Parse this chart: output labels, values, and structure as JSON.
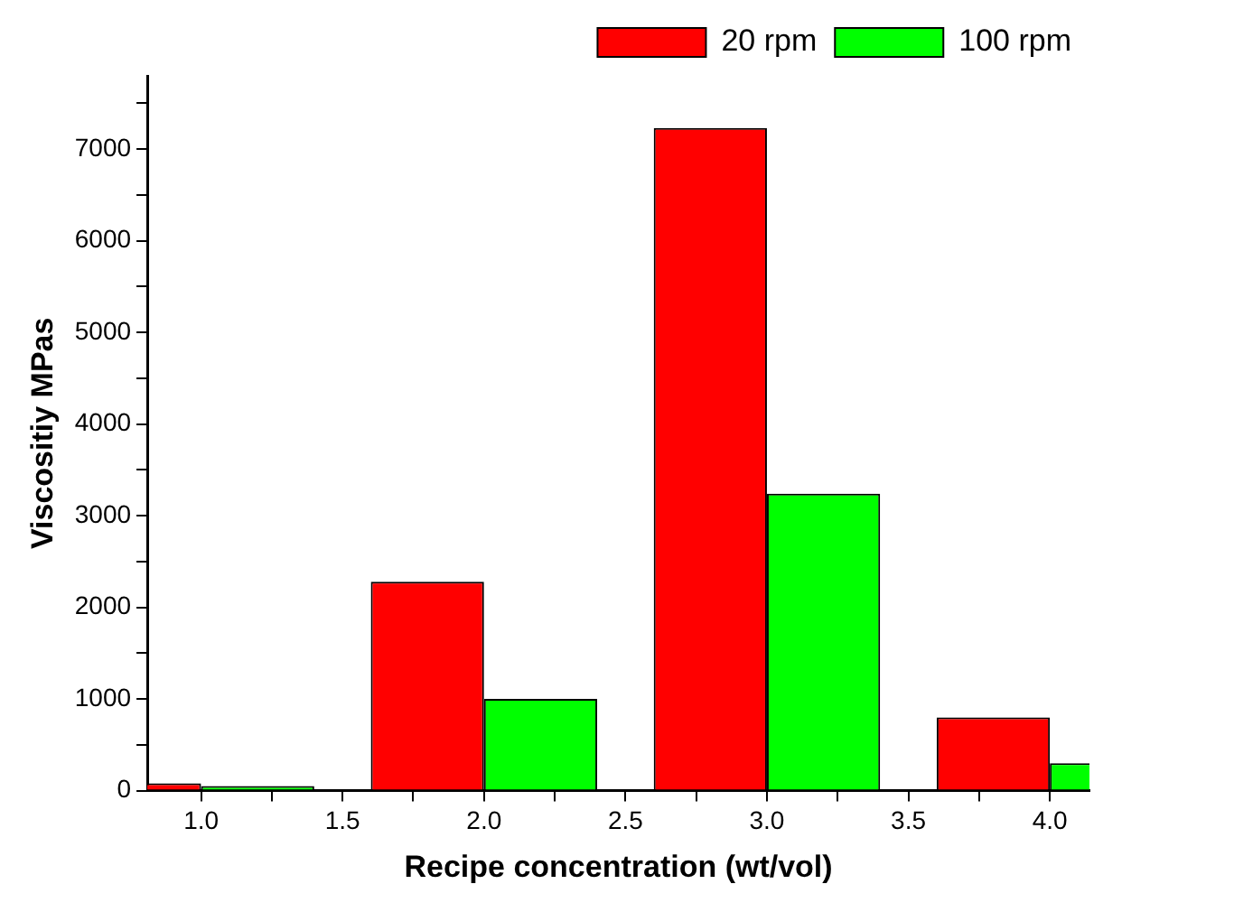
{
  "chart_data": {
    "type": "bar",
    "xlabel": "Recipe concentration (wt/vol)",
    "ylabel": "Viscositiy MPas",
    "x": [
      1,
      2,
      3,
      4
    ],
    "series": [
      {
        "name": "20 rpm",
        "color": "#ff0000",
        "values": [
          80,
          2280,
          7230,
          800
        ]
      },
      {
        "name": "100 rpm",
        "color": "#00ff00",
        "values": [
          50,
          1000,
          3240,
          300
        ]
      }
    ],
    "xlim": [
      0.81,
      4.14
    ],
    "xticks": [
      {
        "value": 1,
        "label": "1.0"
      },
      {
        "value": 1.25,
        "label": null
      },
      {
        "value": 1.5,
        "label": "1.5"
      },
      {
        "value": 1.75,
        "label": null
      },
      {
        "value": 2,
        "label": "2.0"
      },
      {
        "value": 2.25,
        "label": null
      },
      {
        "value": 2.5,
        "label": "2.5"
      },
      {
        "value": 2.75,
        "label": null
      },
      {
        "value": 3,
        "label": "3.0"
      },
      {
        "value": 3.25,
        "label": null
      },
      {
        "value": 3.5,
        "label": "3.5"
      },
      {
        "value": 3.75,
        "label": null
      },
      {
        "value": 4,
        "label": "4.0"
      }
    ],
    "ylim": [
      0,
      7800
    ],
    "yticks": [
      0,
      {
        "value": 500,
        "label": null
      },
      1000,
      {
        "value": 1500,
        "label": null
      },
      2000,
      {
        "value": 2500,
        "label": null
      },
      3000,
      {
        "value": 3500,
        "label": null
      },
      4000,
      {
        "value": 4500,
        "label": null
      },
      5000,
      {
        "value": 5500,
        "label": null
      },
      6000,
      {
        "value": 6500,
        "label": null
      },
      7000,
      {
        "value": 7500,
        "label": null
      }
    ],
    "grid": false,
    "legend": "top right"
  }
}
